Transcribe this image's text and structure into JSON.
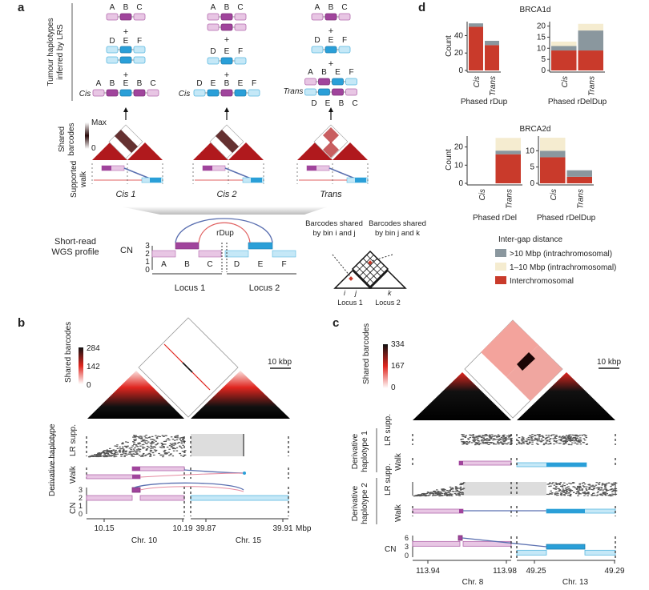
{
  "colors": {
    "dup_locus1": "#a0449c",
    "flank_locus1": "#e8c6e4",
    "dup_locus2": "#2a9fd8",
    "flank_locus2": "#c5e8f7",
    "interchromosomal": "#c93a2b",
    "gt10mbp": "#8a979e",
    "1to10mbp": "#f5ecd0",
    "heat_dark": "#111111",
    "heat_mid": "#e0261f"
  },
  "panel_a": {
    "label": "a",
    "row_title": "Tumour haplotypes inferred by LRS",
    "plus": "+",
    "columns": [
      {
        "caption": "Cis 1",
        "row_label": "Cis"
      },
      {
        "caption": "Cis 2",
        "row_label": "Cis"
      },
      {
        "caption": "Trans",
        "row_label": "Trans"
      }
    ],
    "heat_label": "Shared barcodes",
    "heat_max": "Max",
    "heat_min": "0",
    "walk_label": "Supported walk",
    "wgs_label": "Short-read WGS profile",
    "cn_label": "CN",
    "cn_ticks": [
      "0",
      "1",
      "2",
      "3"
    ],
    "segments": [
      "A",
      "B",
      "C",
      "D",
      "E",
      "F"
    ],
    "rdup_label": "rDup",
    "locus1": "Locus 1",
    "locus2": "Locus 2",
    "barcode_ij": "Barcodes shared by bin i and j",
    "barcode_jk": "Barcodes shared by bin j and k",
    "bin_i": "i",
    "bin_j": "j",
    "bin_k": "k"
  },
  "panel_b": {
    "label": "b",
    "heat_label": "Shared barcodes",
    "scale_ticks": [
      "284",
      "142",
      "0"
    ],
    "scale_bar": "10 kbp",
    "group_label": "Derivative haplotype",
    "track_lr": "LR supp.",
    "track_walk": "Walk",
    "track_cn": "CN",
    "cn_ticks": [
      "3",
      "2",
      "1",
      "0"
    ],
    "x_ticks": [
      "10.15",
      "10.19",
      "39.87",
      "39.91"
    ],
    "x_unit": "Mbp",
    "chr_left": "Chr. 10",
    "chr_right": "Chr. 15"
  },
  "panel_c": {
    "label": "c",
    "heat_label": "Shared barcodes",
    "scale_ticks": [
      "334",
      "167",
      "0"
    ],
    "scale_bar": "10 kbp",
    "group1_label": "Derivative haplotype 1",
    "group2_label": "Derivative haplotype 2",
    "track_lr": "LR supp.",
    "track_walk": "Walk",
    "track_cn": "CN",
    "cn_ticks": [
      "6",
      "3",
      "0"
    ],
    "x_ticks": [
      "113.94",
      "113.98",
      "49.25",
      "49.29"
    ],
    "chr_left": "Chr. 8",
    "chr_right": "Chr. 13"
  },
  "panel_d": {
    "label": "d",
    "group1_title": "BRCA1d",
    "group2_title": "BRCA2d",
    "legend_title": "Inter-gap distance",
    "legend": [
      {
        "label": ">10 Mbp (intrachromosomal)",
        "color": "#8a979e"
      },
      {
        "label": "1–10 Mbp (intrachromosomal)",
        "color": "#f5ecd0"
      },
      {
        "label": "Interchromosomal",
        "color": "#c93a2b"
      }
    ]
  },
  "chart_data": [
    {
      "type": "bar",
      "stacked": true,
      "group": "BRCA1d",
      "title": "",
      "xlabel": "Phased rDup",
      "ylabel": "Count",
      "categories": [
        "Cis",
        "Trans"
      ],
      "ylim": [
        0,
        56
      ],
      "yticks": [
        0,
        20,
        40
      ],
      "series": [
        {
          "name": "Interchromosomal",
          "values": [
            50,
            29
          ]
        },
        {
          "name": ">10 Mbp (intrachromosomal)",
          "values": [
            4,
            5
          ]
        },
        {
          "name": "1–10 Mbp (intrachromosomal)",
          "values": [
            0,
            0
          ]
        }
      ]
    },
    {
      "type": "bar",
      "stacked": true,
      "group": "BRCA1d",
      "title": "",
      "xlabel": "Phased rDelDup",
      "ylabel": "",
      "categories": [
        "Cis",
        "Trans"
      ],
      "ylim": [
        0,
        22
      ],
      "yticks": [
        0,
        5,
        10,
        15,
        20
      ],
      "series": [
        {
          "name": "Interchromosomal",
          "values": [
            9,
            9
          ]
        },
        {
          "name": ">10 Mbp (intrachromosomal)",
          "values": [
            2,
            9
          ]
        },
        {
          "name": "1–10 Mbp (intrachromosomal)",
          "values": [
            2,
            3
          ]
        }
      ]
    },
    {
      "type": "bar",
      "stacked": true,
      "group": "BRCA2d",
      "title": "",
      "xlabel": "Phased rDel",
      "ylabel": "Count",
      "categories": [
        "Cis",
        "Trans"
      ],
      "ylim": [
        0,
        26
      ],
      "yticks": [
        0,
        10,
        20
      ],
      "series": [
        {
          "name": "Interchromosomal",
          "values": [
            0,
            16
          ]
        },
        {
          "name": ">10 Mbp (intrachromosomal)",
          "values": [
            0,
            2
          ]
        },
        {
          "name": "1–10 Mbp (intrachromosomal)",
          "values": [
            0,
            7
          ]
        }
      ]
    },
    {
      "type": "bar",
      "stacked": true,
      "group": "BRCA2d",
      "title": "",
      "xlabel": "Phased rDelDup",
      "ylabel": "",
      "categories": [
        "Cis",
        "Trans"
      ],
      "ylim": [
        0,
        14.5
      ],
      "yticks": [
        0,
        5,
        10
      ],
      "series": [
        {
          "name": "Interchromosomal",
          "values": [
            8,
            2
          ]
        },
        {
          "name": ">10 Mbp (intrachromosomal)",
          "values": [
            2,
            2
          ]
        },
        {
          "name": "1–10 Mbp (intrachromosomal)",
          "values": [
            4,
            0
          ]
        }
      ]
    }
  ]
}
